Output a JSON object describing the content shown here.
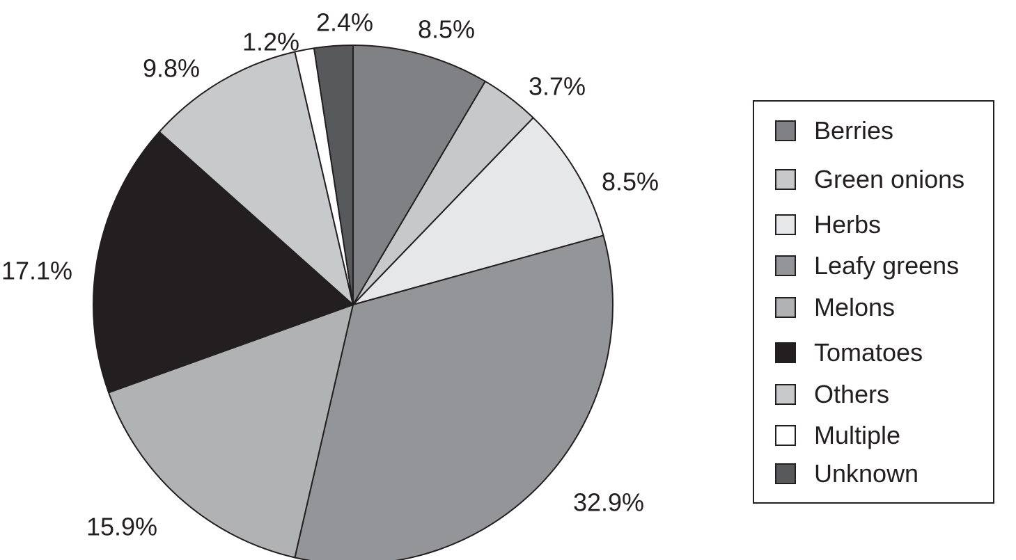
{
  "chart_data": {
    "type": "pie",
    "title": "",
    "start_angle_deg": 0,
    "direction": "clockwise",
    "slices": [
      {
        "label": "Berries",
        "value": 8.5,
        "value_label": "8.5%",
        "color": "#808184"
      },
      {
        "label": "Green onions",
        "value": 3.7,
        "value_label": "3.7%",
        "color": "#c7c8ca"
      },
      {
        "label": "Herbs",
        "value": 8.5,
        "value_label": "8.5%",
        "color": "#e6e7e8"
      },
      {
        "label": "Leafy greens",
        "value": 32.9,
        "value_label": "32.9%",
        "color": "#939598"
      },
      {
        "label": "Melons",
        "value": 15.9,
        "value_label": "15.9%",
        "color": "#b0b2b4"
      },
      {
        "label": "Tomatoes",
        "value": 17.1,
        "value_label": "17.1%",
        "color": "#231f20"
      },
      {
        "label": "Others",
        "value": 9.8,
        "value_label": "9.8%",
        "color": "#c8c9cb"
      },
      {
        "label": "Multiple",
        "value": 1.2,
        "value_label": "1.2%",
        "color": "#ffffff"
      },
      {
        "label": "Unknown",
        "value": 2.4,
        "value_label": "2.4%",
        "color": "#58595b"
      }
    ],
    "legend": {
      "position": "right",
      "entries": [
        "Berries",
        "Green onions",
        "Herbs",
        "Leafy greens",
        "Melons",
        "Tomatoes",
        "Others",
        "Multiple",
        "Unknown"
      ]
    }
  }
}
